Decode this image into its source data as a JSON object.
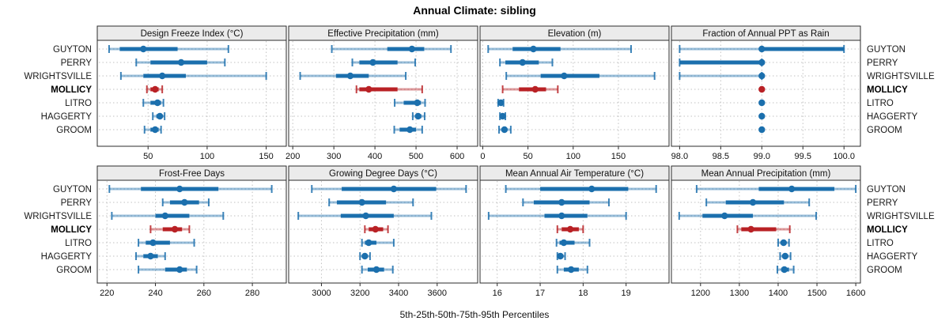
{
  "title": "Annual Climate: sibling",
  "xlabel": "5th-25th-50th-75th-95th Percentiles",
  "groups": [
    "GUYTON",
    "PERRY",
    "WRIGHTSVILLE",
    "MOLLICY",
    "LITRO",
    "HAGGERTY",
    "GROOM"
  ],
  "highlight_group": "MOLLICY",
  "colors": {
    "series": "#1b6fad",
    "series_light": "rgba(27,111,173,0.45)",
    "series_cap": "rgba(27,111,173,0.85)",
    "highlight": "#b92125",
    "highlight_light": "rgba(185,33,37,0.45)",
    "highlight_cap": "rgba(185,33,37,0.85)",
    "strip_bg": "#ebebeb",
    "panel_border": "#2b2b2b",
    "grid": "#c2c2c2"
  },
  "chart_data": [
    {
      "type": "percentile-dotplot",
      "title": "Design Freeze Index (°C)",
      "percentiles": [
        5,
        25,
        50,
        75,
        95
      ],
      "xlim": [
        7,
        167
      ],
      "ticks": [
        50,
        100,
        150
      ],
      "tick_labels": [
        "50",
        "100",
        "150"
      ],
      "grid": true,
      "series": {
        "GUYTON": [
          17,
          26,
          46,
          75,
          118
        ],
        "PERRY": [
          40,
          52,
          78,
          100,
          115
        ],
        "WRIGHTSVILLE": [
          27,
          46,
          62,
          82,
          150
        ],
        "MOLLICY": [
          49,
          52,
          56,
          59,
          62
        ],
        "LITRO": [
          46,
          52,
          58,
          61,
          63
        ],
        "HAGGERTY": [
          54,
          57,
          60,
          62,
          64
        ],
        "GROOM": [
          47,
          52,
          56,
          59,
          61
        ]
      }
    },
    {
      "type": "percentile-dotplot",
      "title": "Effective Precipitation (mm)",
      "percentiles": [
        5,
        25,
        50,
        75,
        95
      ],
      "xlim": [
        190,
        650
      ],
      "ticks": [
        200,
        300,
        400,
        500,
        600
      ],
      "tick_labels": [
        "200",
        "300",
        "400",
        "500",
        "600"
      ],
      "grid": true,
      "series": {
        "GUYTON": [
          295,
          430,
          490,
          520,
          585
        ],
        "PERRY": [
          345,
          362,
          395,
          455,
          498
        ],
        "WRIGHTSVILLE": [
          218,
          305,
          340,
          385,
          475
        ],
        "MOLLICY": [
          355,
          362,
          385,
          455,
          515
        ],
        "LITRO": [
          448,
          470,
          503,
          512,
          522
        ],
        "HAGGERTY": [
          492,
          499,
          505,
          513,
          521
        ],
        "GROOM": [
          447,
          460,
          485,
          500,
          515
        ]
      }
    },
    {
      "type": "percentile-dotplot",
      "title": "Elevation (m)",
      "percentiles": [
        5,
        25,
        50,
        75,
        95
      ],
      "xlim": [
        -3,
        206
      ],
      "ticks": [
        0,
        50,
        100,
        150
      ],
      "tick_labels": [
        "0",
        "50",
        "100",
        "150"
      ],
      "grid": true,
      "series": {
        "GUYTON": [
          6,
          33,
          56,
          86,
          164
        ],
        "PERRY": [
          19,
          25,
          44,
          62,
          77
        ],
        "WRIGHTSVILLE": [
          26,
          64,
          90,
          129,
          190
        ],
        "MOLLICY": [
          22,
          40,
          58,
          70,
          83
        ],
        "LITRO": [
          17,
          18.5,
          20,
          21.5,
          23
        ],
        "HAGGERTY": [
          19,
          20.5,
          22,
          23.5,
          25
        ],
        "GROOM": [
          18,
          21,
          24,
          27,
          31
        ]
      }
    },
    {
      "type": "percentile-dotplot",
      "title": "Fraction of Annual PPT as Rain",
      "percentiles": [
        5,
        25,
        50,
        75,
        95
      ],
      "xlim": [
        97.9,
        100.2
      ],
      "ticks": [
        98.0,
        98.5,
        99.0,
        99.5,
        100.0
      ],
      "tick_labels": [
        "98.0",
        "98.5",
        "99.0",
        "99.5",
        "100.0"
      ],
      "grid": true,
      "series": {
        "GUYTON": [
          98,
          99,
          99,
          100,
          100
        ],
        "PERRY": [
          98,
          98,
          99,
          99,
          99
        ],
        "WRIGHTSVILLE": [
          98,
          99,
          99,
          99,
          99
        ],
        "MOLLICY": [
          99,
          99,
          99,
          99,
          99
        ],
        "LITRO": [
          99,
          99,
          99,
          99,
          99
        ],
        "HAGGERTY": [
          99,
          99,
          99,
          99,
          99
        ],
        "GROOM": [
          99,
          99,
          99,
          99,
          99
        ]
      }
    },
    {
      "type": "percentile-dotplot",
      "title": "Frost-Free Days",
      "percentiles": [
        5,
        25,
        50,
        75,
        95
      ],
      "xlim": [
        216,
        294
      ],
      "ticks": [
        220,
        240,
        260,
        280
      ],
      "tick_labels": [
        "220",
        "240",
        "260",
        "280"
      ],
      "grid": true,
      "series": {
        "GUYTON": [
          221,
          234,
          250,
          266,
          288
        ],
        "PERRY": [
          243,
          246,
          252,
          258,
          262
        ],
        "WRIGHTSVILLE": [
          222,
          240,
          244,
          254,
          268
        ],
        "MOLLICY": [
          238,
          243,
          248,
          251,
          254
        ],
        "LITRO": [
          233,
          236,
          239,
          246,
          256
        ],
        "HAGGERTY": [
          232,
          235,
          238,
          241,
          244
        ],
        "GROOM": [
          233,
          244,
          250,
          253,
          257
        ]
      }
    },
    {
      "type": "percentile-dotplot",
      "title": "Growing Degree Days (°C)",
      "percentiles": [
        5,
        25,
        50,
        75,
        95
      ],
      "xlim": [
        2830,
        3810
      ],
      "ticks": [
        3000,
        3200,
        3400,
        3600
      ],
      "tick_labels": [
        "3000",
        "3200",
        "3400",
        "3600"
      ],
      "grid": true,
      "series": {
        "GUYTON": [
          2950,
          3105,
          3375,
          3595,
          3750
        ],
        "PERRY": [
          3040,
          3080,
          3210,
          3335,
          3475
        ],
        "WRIGHTSVILLE": [
          2880,
          3100,
          3230,
          3375,
          3570
        ],
        "MOLLICY": [
          3225,
          3245,
          3280,
          3320,
          3345
        ],
        "LITRO": [
          3210,
          3225,
          3245,
          3285,
          3375
        ],
        "HAGGERTY": [
          3200,
          3212,
          3225,
          3238,
          3252
        ],
        "GROOM": [
          3210,
          3240,
          3285,
          3325,
          3370
        ]
      }
    },
    {
      "type": "percentile-dotplot",
      "title": "Mean Annual Air Temperature (°C)",
      "percentiles": [
        5,
        25,
        50,
        75,
        95
      ],
      "xlim": [
        15.6,
        20.0
      ],
      "ticks": [
        16,
        17,
        18,
        19
      ],
      "tick_labels": [
        "16",
        "17",
        "18",
        "19"
      ],
      "grid": true,
      "series": {
        "GUYTON": [
          16.2,
          17.0,
          18.2,
          19.05,
          19.7
        ],
        "PERRY": [
          16.6,
          16.85,
          17.5,
          18.15,
          18.6
        ],
        "WRIGHTSVILLE": [
          15.8,
          17.1,
          17.5,
          18.1,
          19.0
        ],
        "MOLLICY": [
          17.4,
          17.5,
          17.7,
          17.9,
          18.0
        ],
        "LITRO": [
          17.38,
          17.45,
          17.55,
          17.8,
          18.15
        ],
        "HAGGERTY": [
          17.4,
          17.43,
          17.47,
          17.52,
          17.58
        ],
        "GROOM": [
          17.4,
          17.55,
          17.72,
          17.9,
          18.1
        ]
      }
    },
    {
      "type": "percentile-dotplot",
      "title": "Mean Annual Precipitation (mm)",
      "percentiles": [
        5,
        25,
        50,
        75,
        95
      ],
      "xlim": [
        1125,
        1612
      ],
      "ticks": [
        1200,
        1300,
        1400,
        1500,
        1600
      ],
      "tick_labels": [
        "1200",
        "1300",
        "1400",
        "1500",
        "1600"
      ],
      "grid": true,
      "series": {
        "GUYTON": [
          1190,
          1350,
          1435,
          1545,
          1600
        ],
        "PERRY": [
          1215,
          1265,
          1335,
          1415,
          1480
        ],
        "WRIGHTSVILLE": [
          1145,
          1205,
          1262,
          1335,
          1498
        ],
        "MOLLICY": [
          1295,
          1305,
          1330,
          1395,
          1430
        ],
        "LITRO": [
          1400,
          1408,
          1414,
          1421,
          1428
        ],
        "HAGGERTY": [
          1405,
          1412,
          1418,
          1425,
          1432
        ],
        "GROOM": [
          1398,
          1408,
          1416,
          1428,
          1440
        ]
      }
    }
  ]
}
